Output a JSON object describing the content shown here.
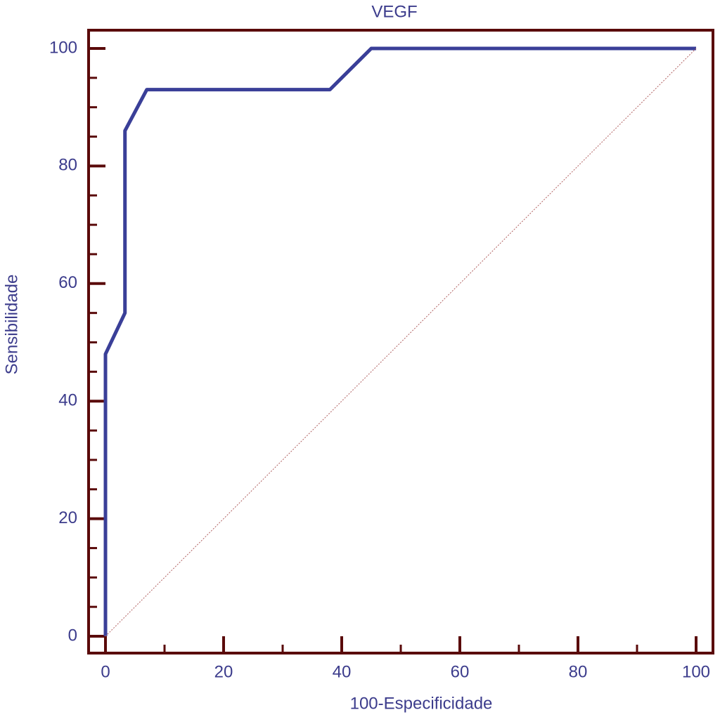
{
  "chart_data": {
    "type": "line",
    "title": "VEGF",
    "xlabel": "100-Especificidade",
    "ylabel": "Sensibilidade",
    "series": [
      {
        "color": "#3a3f98",
        "x": [
          0,
          0,
          3.3,
          3.3,
          7,
          38,
          45,
          100
        ],
        "values": [
          0,
          48,
          55,
          86,
          93,
          93,
          100,
          100
        ]
      },
      {
        "color": "#b06060",
        "x": [
          0,
          100
        ],
        "values": [
          0,
          100
        ],
        "dashed": true
      }
    ],
    "xlim": [
      0,
      100
    ],
    "ylim": [
      0,
      100
    ],
    "xticks": [
      0,
      20,
      40,
      60,
      80,
      100
    ],
    "yticks": [
      0,
      20,
      40,
      60,
      80,
      100
    ],
    "xminorticks": [
      10,
      30,
      50,
      70,
      90
    ],
    "yminorticks": [
      5,
      10,
      15,
      25,
      30,
      35,
      45,
      50,
      55,
      65,
      70,
      75,
      85,
      90,
      95
    ],
    "grid": false
  }
}
